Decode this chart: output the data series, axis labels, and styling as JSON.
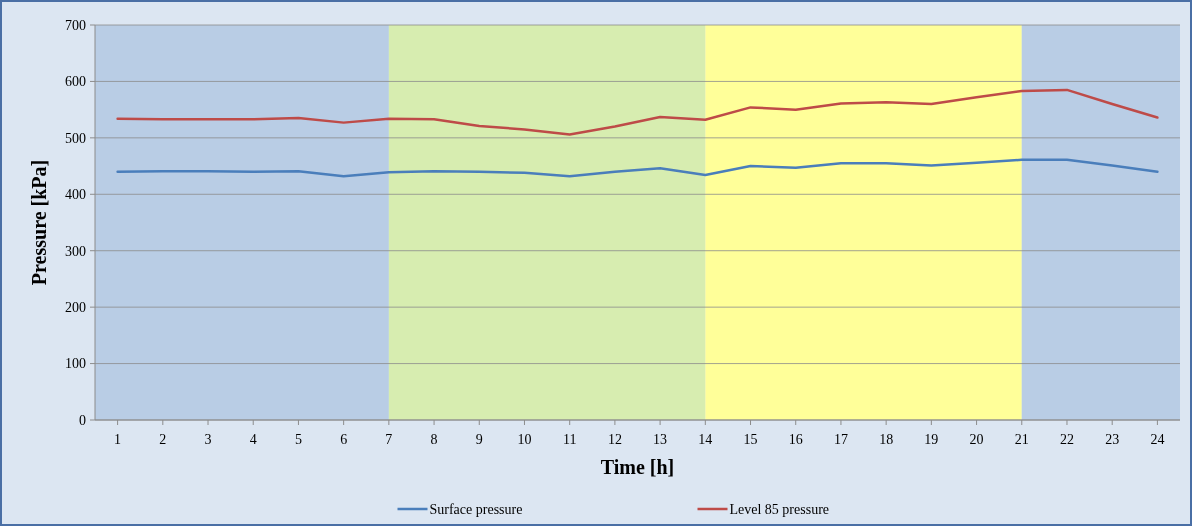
{
  "chart_data": {
    "type": "line",
    "xlabel": "Time [h]",
    "ylabel": "Pressure [kPa]",
    "x": [
      1,
      2,
      3,
      4,
      5,
      6,
      7,
      8,
      9,
      10,
      11,
      12,
      13,
      14,
      15,
      16,
      17,
      18,
      19,
      20,
      21,
      22,
      23,
      24
    ],
    "xlim": [
      0.5,
      24.5
    ],
    "xticks": [
      1,
      2,
      3,
      4,
      5,
      6,
      7,
      8,
      9,
      10,
      11,
      12,
      13,
      14,
      15,
      16,
      17,
      18,
      19,
      20,
      21,
      22,
      23,
      24
    ],
    "ylim": [
      0,
      700
    ],
    "yticks": [
      0,
      100,
      200,
      300,
      400,
      500,
      600,
      700
    ],
    "grid": "y",
    "legend": "bottom",
    "marker": "none",
    "line_style": "solid",
    "bands": [
      {
        "axis": "x",
        "from": 0.5,
        "to": 7,
        "color": "#b9cde5"
      },
      {
        "axis": "x",
        "from": 7,
        "to": 14,
        "color": "#d7edb0"
      },
      {
        "axis": "x",
        "from": 14,
        "to": 21,
        "color": "#ffff99"
      },
      {
        "axis": "x",
        "from": 21,
        "to": 24.5,
        "color": "#b9cde5"
      }
    ],
    "series": [
      {
        "name": "Surface pressure",
        "color": "#4a7ebb",
        "values": [
          440,
          441,
          441,
          440,
          441,
          432,
          439,
          441,
          440,
          438,
          432,
          440,
          446,
          434,
          450,
          447,
          455,
          455,
          451,
          456,
          461,
          461,
          451,
          440
        ]
      },
      {
        "name": "Level 85 pressure",
        "color": "#be4b48",
        "values": [
          534,
          533,
          533,
          533,
          535,
          527,
          534,
          533,
          521,
          515,
          506,
          520,
          537,
          532,
          554,
          550,
          561,
          563,
          560,
          572,
          583,
          585,
          560,
          536
        ]
      }
    ]
  }
}
